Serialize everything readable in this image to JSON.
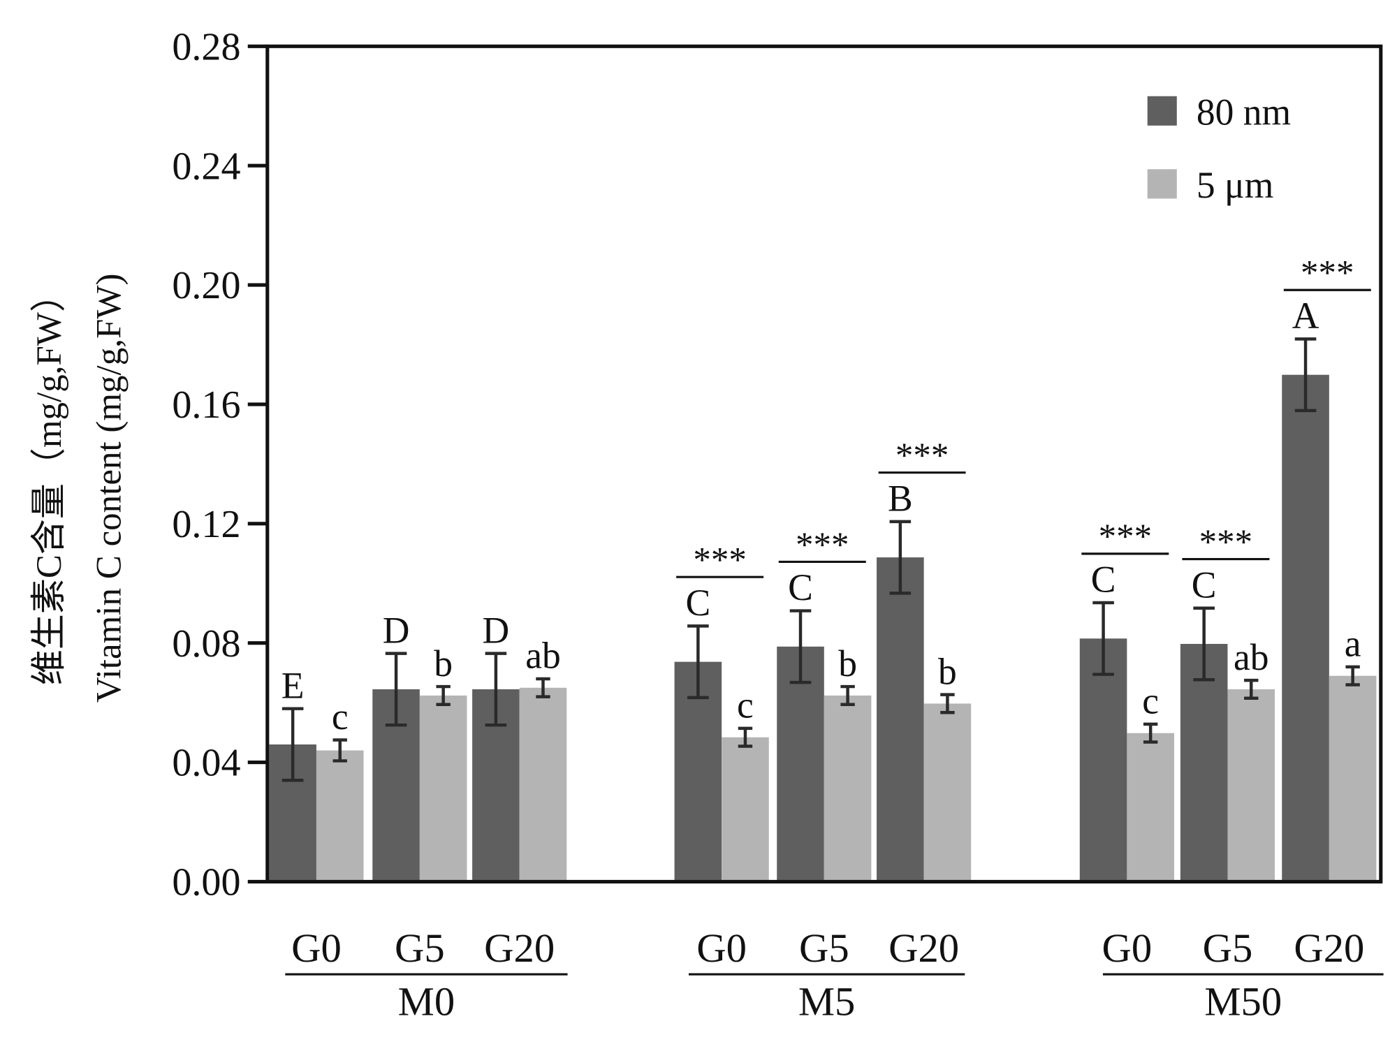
{
  "chart_data": {
    "type": "bar",
    "title": "",
    "ylabel_cn": "维生素C含量（mg/g,FW）",
    "ylabel": "Vitamin C content (mg/g,FW)",
    "xlabel": "",
    "ylim": [
      0,
      0.28
    ],
    "yticks": [
      "0.00",
      "0.04",
      "0.08",
      "0.12",
      "0.16",
      "0.20",
      "0.24",
      "0.28"
    ],
    "groups": [
      "M0",
      "M5",
      "M50"
    ],
    "subcategories": [
      "G0",
      "G5",
      "G20"
    ],
    "legend_position": "top-right",
    "series": [
      {
        "name": "80 nm",
        "color": "#5f5f5f",
        "values": [
          0.046,
          0.0645,
          0.0645,
          0.0737,
          0.0788,
          0.1087,
          0.0815,
          0.0797,
          0.1699
        ],
        "errors": [
          0.012,
          0.012,
          0.012,
          0.012,
          0.012,
          0.012,
          0.012,
          0.012,
          0.012
        ],
        "letters": [
          "E",
          "D",
          "D",
          "C",
          "C",
          "B",
          "C",
          "C",
          "A"
        ]
      },
      {
        "name": "5 μm",
        "color": "#b4b4b4",
        "values": [
          0.044,
          0.0624,
          0.065,
          0.0484,
          0.0624,
          0.0597,
          0.0498,
          0.0645,
          0.069
        ],
        "errors": [
          0.0035,
          0.003,
          0.003,
          0.003,
          0.003,
          0.003,
          0.003,
          0.003,
          0.003
        ],
        "letters": [
          "c",
          "b",
          "ab",
          "c",
          "b",
          "b",
          "c",
          "ab",
          "a"
        ]
      }
    ],
    "significance": [
      "",
      "",
      "",
      "***",
      "***",
      "***",
      "***",
      "***",
      "***"
    ]
  }
}
